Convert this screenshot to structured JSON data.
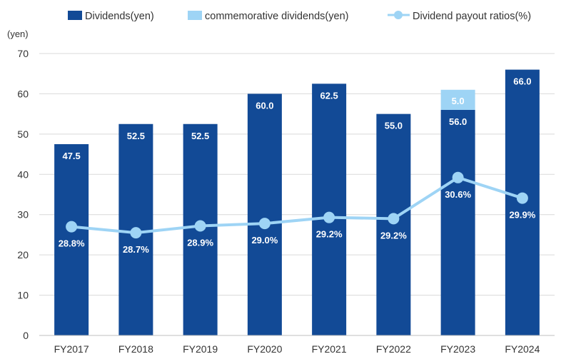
{
  "chart_data": {
    "type": "bar",
    "unit_label": "(yen)",
    "categories": [
      "FY2017",
      "FY2018",
      "FY2019",
      "FY2020",
      "FY2021",
      "FY2022",
      "FY2023",
      "FY2024"
    ],
    "series": [
      {
        "name": "Dividends(yen)",
        "type": "bar",
        "color": "#124a96",
        "values": [
          47.5,
          52.5,
          52.5,
          60.0,
          62.5,
          55.0,
          56.0,
          66.0
        ],
        "labels": [
          "47.5",
          "52.5",
          "52.5",
          "60.0",
          "62.5",
          "55.0",
          "56.0",
          "66.0"
        ]
      },
      {
        "name": "commemorative dividends(yen)",
        "type": "stacked-bar",
        "color": "#9ed4f5",
        "values": [
          0,
          0,
          0,
          0,
          0,
          0,
          5.0,
          0
        ],
        "labels": [
          "",
          "",
          "",
          "",
          "",
          "",
          "5.0",
          ""
        ]
      },
      {
        "name": "Dividend payout ratios(%)",
        "type": "line",
        "color": "#9ed4f5",
        "values": [
          28.8,
          28.7,
          28.9,
          29.0,
          29.2,
          29.2,
          30.6,
          29.9
        ],
        "plot_values": [
          27.0,
          25.5,
          27.2,
          27.8,
          29.3,
          29.0,
          39.2,
          34.1
        ],
        "labels": [
          "28.8%",
          "28.7%",
          "28.9%",
          "29.0%",
          "29.2%",
          "29.2%",
          "30.6%",
          "29.9%"
        ]
      }
    ],
    "yticks": [
      0,
      10,
      20,
      30,
      40,
      50,
      60,
      70
    ],
    "ylim": [
      0,
      70
    ],
    "grid": true,
    "legend": "top"
  }
}
